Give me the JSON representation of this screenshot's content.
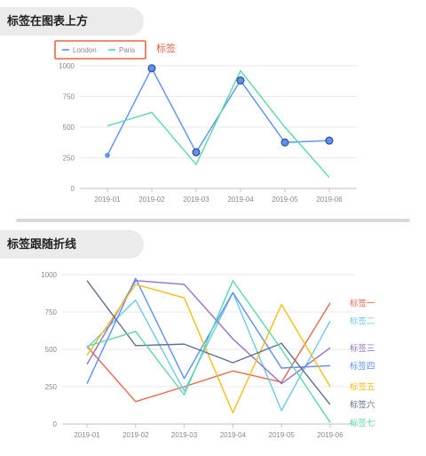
{
  "sections": [
    {
      "title": "标签在图表上方"
    },
    {
      "title": "标签跟随折线"
    }
  ],
  "chart_data": [
    {
      "type": "line",
      "categories": [
        "2019-01",
        "2019-02",
        "2019-03",
        "2019-04",
        "2019-05",
        "2019-06"
      ],
      "ylim": [
        0,
        1000
      ],
      "yticks": [
        "0",
        "250",
        "500",
        "750",
        "1000"
      ],
      "annotation": "标签",
      "series": [
        {
          "name": "London",
          "color": "#5b8ff9",
          "values": [
            270,
            980,
            295,
            880,
            375,
            390
          ]
        },
        {
          "name": "Paris",
          "color": "#5ad8a6",
          "values": [
            510,
            620,
            195,
            960,
            500,
            90
          ]
        }
      ]
    },
    {
      "type": "line",
      "categories": [
        "2019-01",
        "2019-02",
        "2019-03",
        "2019-04",
        "2019-05",
        "2019-06"
      ],
      "ylim": [
        0,
        1000
      ],
      "yticks": [
        "0",
        "250",
        "500",
        "750",
        "1000"
      ],
      "series": [
        {
          "name": "标签一",
          "color": "#e8684a",
          "values": [
            520,
            150,
            250,
            355,
            280,
            810
          ]
        },
        {
          "name": "标签二",
          "color": "#6dc8ec",
          "values": [
            510,
            830,
            220,
            880,
            90,
            690
          ]
        },
        {
          "name": "标签三",
          "color": "#9270ca",
          "values": [
            400,
            960,
            935,
            570,
            270,
            510
          ]
        },
        {
          "name": "标签四",
          "color": "#5b8ff9",
          "values": [
            270,
            975,
            305,
            880,
            375,
            390
          ]
        },
        {
          "name": "标签五",
          "color": "#f6bd16",
          "values": [
            460,
            935,
            845,
            75,
            800,
            250
          ]
        },
        {
          "name": "标签六",
          "color": "#5d7092",
          "values": [
            960,
            525,
            535,
            410,
            540,
            130
          ]
        },
        {
          "name": "标签七",
          "color": "#5ad8a6",
          "values": [
            520,
            620,
            195,
            960,
            500,
            10
          ]
        }
      ]
    }
  ]
}
